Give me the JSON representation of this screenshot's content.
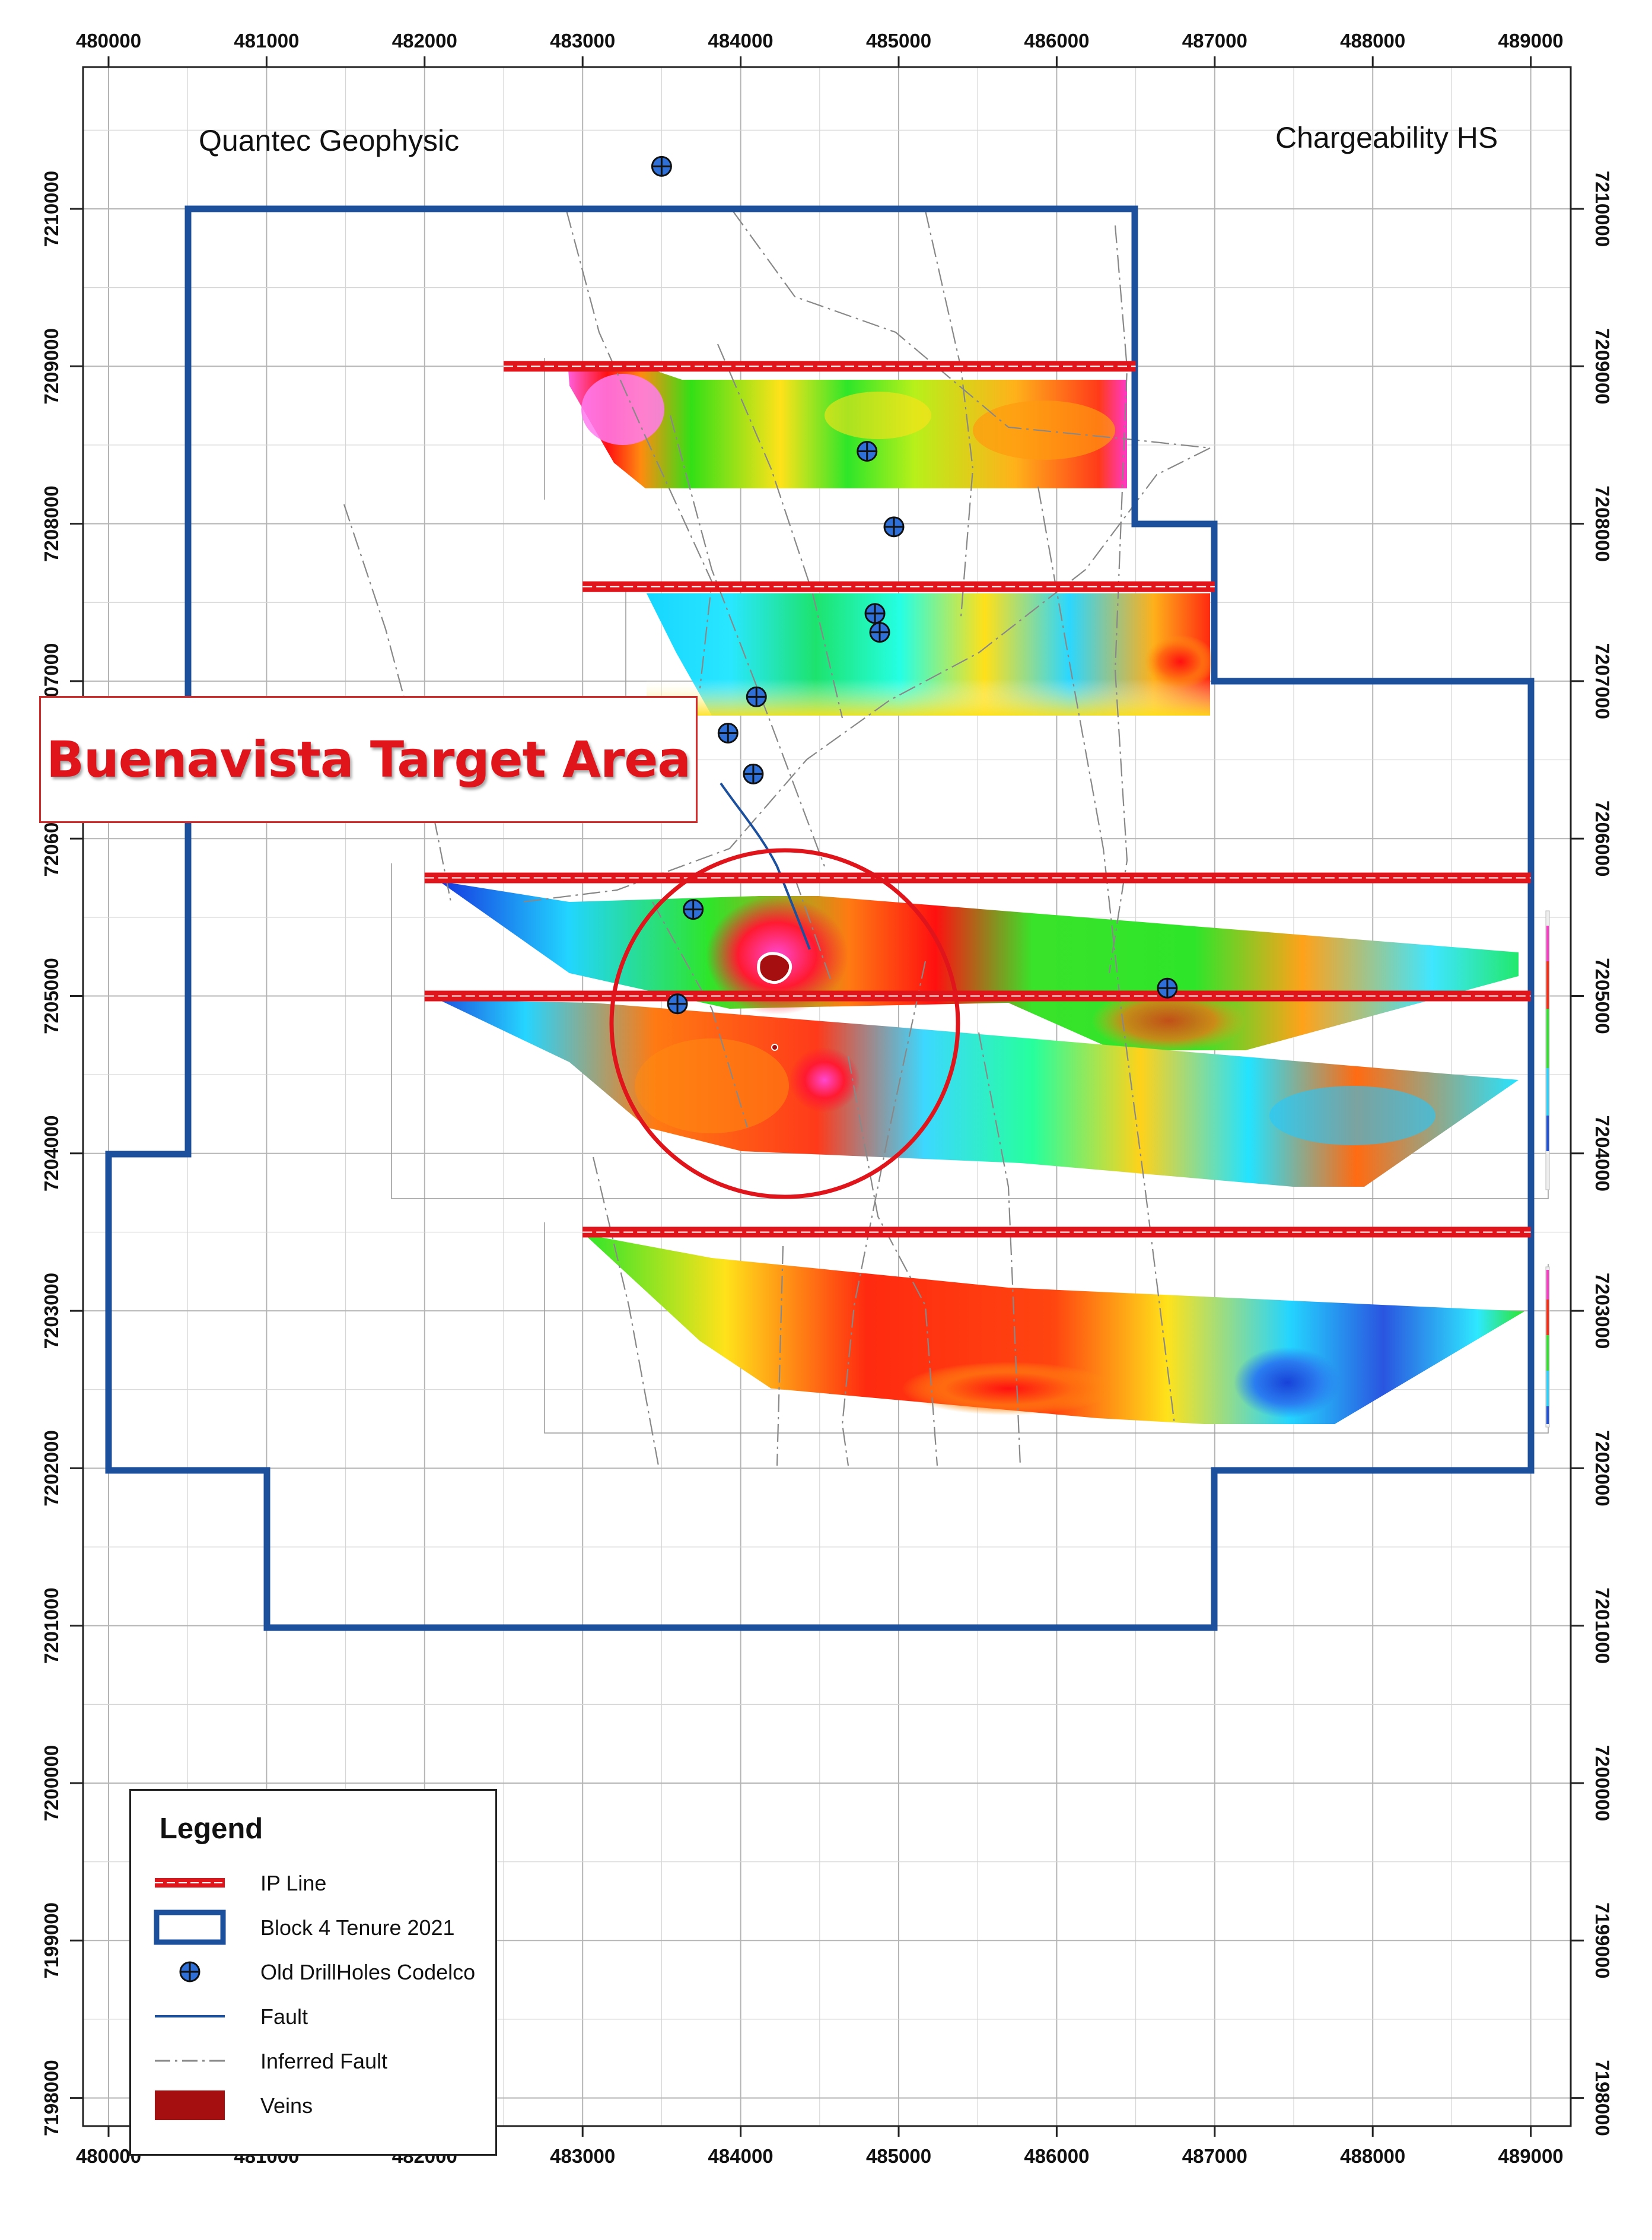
{
  "map": {
    "title_left": "Quantec Geophysic",
    "title_right": "Chargeability HS",
    "target_label": "Buenavista Target Area",
    "x_ticks": [
      "480000",
      "481000",
      "482000",
      "483000",
      "484000",
      "485000",
      "486000",
      "487000",
      "488000",
      "489000"
    ],
    "y_ticks": [
      "7210000",
      "7209000",
      "7208000",
      "7207000",
      "7206000",
      "7205000",
      "7204000",
      "7203000",
      "7202000",
      "7201000",
      "7200000",
      "7199000",
      "7198000"
    ],
    "x_ticks_left_visible": [
      "7210000",
      "7209000",
      "7208000",
      "7207000",
      "7206000",
      "7205000",
      "7204000",
      "7203000",
      "7202000",
      "7201000",
      "7200000",
      "7199000",
      "7198000"
    ],
    "colors": {
      "tenure": "#1c4f9c",
      "ip_line": "#e0151c",
      "drillhole": "#2f6fd8",
      "fault": "#1c4f9c",
      "inferred_fault": "#888888",
      "veins": "#a50f0f",
      "target_circle": "#e0151c",
      "grid": "#bdbdbd"
    },
    "icons": [
      "drillhole-icon",
      "legend-swatch-icons"
    ]
  },
  "legend": {
    "title": "Legend",
    "items": [
      {
        "label": "IP Line",
        "symbol": "ip-line"
      },
      {
        "label": "Block 4 Tenure 2021",
        "symbol": "tenure-box"
      },
      {
        "label": "Old DrillHoles Codelco",
        "symbol": "drillhole"
      },
      {
        "label": "Fault",
        "symbol": "fault"
      },
      {
        "label": "Inferred Fault",
        "symbol": "inferred-fault"
      },
      {
        "label": "Veins",
        "symbol": "veins"
      }
    ]
  }
}
